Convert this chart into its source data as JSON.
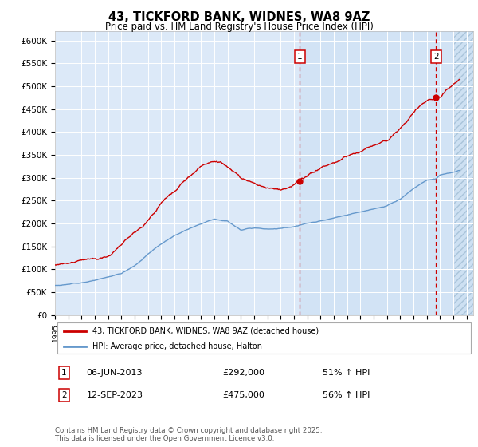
{
  "title": "43, TICKFORD BANK, WIDNES, WA8 9AZ",
  "subtitle": "Price paid vs. HM Land Registry's House Price Index (HPI)",
  "legend_label_red": "43, TICKFORD BANK, WIDNES, WA8 9AZ (detached house)",
  "legend_label_blue": "HPI: Average price, detached house, Halton",
  "ylim": [
    0,
    620000
  ],
  "yticks": [
    0,
    50000,
    100000,
    150000,
    200000,
    250000,
    300000,
    350000,
    400000,
    450000,
    500000,
    550000,
    600000
  ],
  "ytick_labels": [
    "£0",
    "£50K",
    "£100K",
    "£150K",
    "£200K",
    "£250K",
    "£300K",
    "£350K",
    "£400K",
    "£450K",
    "£500K",
    "£550K",
    "£600K"
  ],
  "xlim_start": 1995.0,
  "xlim_end": 2026.5,
  "marker1_x": 2013.44,
  "marker1_y": 292000,
  "marker1_label": "1",
  "marker1_date": "06-JUN-2013",
  "marker1_price": "£292,000",
  "marker1_hpi": "51% ↑ HPI",
  "marker2_x": 2023.71,
  "marker2_y": 475000,
  "marker2_label": "2",
  "marker2_date": "12-SEP-2023",
  "marker2_price": "£475,000",
  "marker2_hpi": "56% ↑ HPI",
  "bg_color": "#dce9f8",
  "bg_color_right": "#cce0f5",
  "red_color": "#cc0000",
  "blue_color": "#6699cc",
  "footnote": "Contains HM Land Registry data © Crown copyright and database right 2025.\nThis data is licensed under the Open Government Licence v3.0.",
  "hatch_start": 2025.0,
  "seed": 12
}
